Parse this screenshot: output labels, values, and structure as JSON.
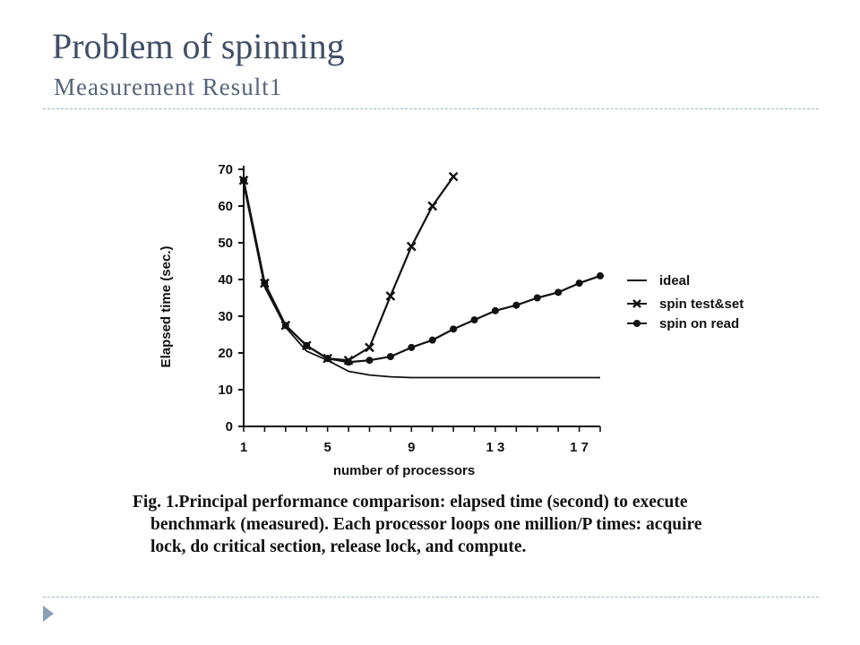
{
  "slide": {
    "title": "Problem of spinning",
    "subtitle": "Measurement Result1",
    "caption": [
      "Fig. 1.Principal performance comparison: elapsed time (second) to execute",
      "benchmark (measured). Each processor loops one million/P times: acquire",
      "lock, do critical section, release lock, and compute."
    ]
  },
  "colors": {
    "title": "#3f4f66",
    "rule": "#9fb3c8",
    "bullet": "#8aa0b6",
    "ink": "#111111"
  },
  "chart_data": {
    "type": "line",
    "xlabel": "number of processors",
    "ylabel": "Elapsed time (sec.)",
    "xlim": [
      1,
      18
    ],
    "ylim": [
      0,
      70
    ],
    "xticks": [
      1,
      5,
      9,
      13,
      17
    ],
    "xtick_labels": [
      "1",
      "5",
      "9",
      "1 3",
      "1 7"
    ],
    "yticks": [
      0,
      10,
      20,
      30,
      40,
      50,
      60,
      70
    ],
    "grid": false,
    "legend": "right",
    "series": [
      {
        "name": "ideal",
        "marker": "none",
        "x": [
          1,
          2,
          3,
          4,
          5,
          6,
          7,
          8,
          9,
          10,
          11,
          12,
          13,
          14,
          15,
          16,
          17,
          18
        ],
        "y": [
          66,
          38,
          27,
          20.5,
          18,
          15,
          14,
          13.5,
          13.3,
          13.3,
          13.3,
          13.3,
          13.3,
          13.3,
          13.3,
          13.3,
          13.3,
          13.3
        ]
      },
      {
        "name": "spin test&set",
        "marker": "x",
        "x": [
          1,
          2,
          3,
          4,
          5,
          6,
          7,
          8,
          9,
          10,
          11
        ],
        "y": [
          67,
          39,
          27.5,
          22,
          18.5,
          18,
          21.5,
          35.5,
          49,
          60,
          68
        ]
      },
      {
        "name": "spin on read",
        "marker": "dot",
        "x": [
          1,
          2,
          3,
          4,
          5,
          6,
          7,
          8,
          9,
          10,
          11,
          12,
          13,
          14,
          15,
          16,
          17,
          18
        ],
        "y": [
          67,
          39,
          27.5,
          22,
          18.5,
          17.5,
          18,
          19,
          21.5,
          23.5,
          26.5,
          29,
          31.5,
          33,
          35,
          36.5,
          39,
          41
        ]
      }
    ]
  }
}
